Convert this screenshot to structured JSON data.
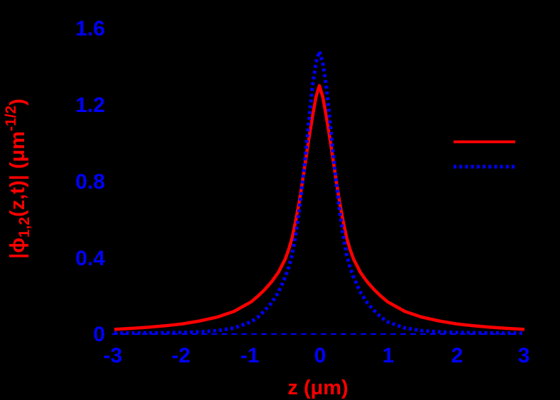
{
  "chart_data": {
    "type": "line",
    "title": "",
    "xlabel": "z (μm)",
    "ylabel": "|ϕ₁‚₂(z,t)| (μm⁻¹ᐟ²)",
    "ylabel_parts": {
      "pre": "|ϕ",
      "sub": "1,2",
      "mid": "(z,t)| (μm",
      "sup": "-1/2",
      "post": ")"
    },
    "xlim": [
      -3,
      3
    ],
    "ylim": [
      0,
      1.6
    ],
    "grid": false,
    "background_color": "#000000",
    "axis_label_color": "#ff0000",
    "tick_label_color": "#0000ff",
    "x_ticks": {
      "values": [
        -3,
        -2,
        -1,
        0,
        1,
        2,
        3
      ],
      "labels": [
        "-3",
        "-2",
        "-1",
        "0",
        "1",
        "2",
        "3"
      ]
    },
    "y_ticks": {
      "values": [
        0,
        0.4,
        0.8,
        1.2,
        1.6
      ],
      "labels": [
        "0",
        "0.4",
        "0.8",
        "1.2",
        "1.6"
      ]
    },
    "zero_line": {
      "color": "#0000ff",
      "style": "dashed",
      "value": 0
    },
    "legend": {
      "position": "upper-right",
      "entries": [
        {
          "series": "red-solid",
          "label": ""
        },
        {
          "series": "blue-dotted",
          "label": ""
        }
      ]
    },
    "series": [
      {
        "id": "red-solid",
        "color": "#ff0000",
        "line_style": "solid",
        "peak": 1.3,
        "x": [
          -3,
          -2.75,
          -2.5,
          -2.25,
          -2,
          -1.75,
          -1.5,
          -1.25,
          -1,
          -0.9,
          -0.8,
          -0.7,
          -0.6,
          -0.5,
          -0.45,
          -0.4,
          -0.35,
          -0.3,
          -0.25,
          -0.2,
          -0.15,
          -0.1,
          -0.05,
          0,
          0.05,
          0.1,
          0.15,
          0.2,
          0.25,
          0.3,
          0.35,
          0.4,
          0.45,
          0.5,
          0.6,
          0.7,
          0.8,
          0.9,
          1,
          1.25,
          1.5,
          1.75,
          2,
          2.25,
          2.5,
          2.75,
          3
        ],
        "y": [
          0.021,
          0.026,
          0.032,
          0.04,
          0.05,
          0.065,
          0.085,
          0.115,
          0.165,
          0.195,
          0.23,
          0.27,
          0.32,
          0.39,
          0.44,
          0.5,
          0.585,
          0.68,
          0.79,
          0.91,
          1.03,
          1.14,
          1.24,
          1.3,
          1.24,
          1.14,
          1.03,
          0.91,
          0.79,
          0.68,
          0.585,
          0.5,
          0.44,
          0.39,
          0.32,
          0.27,
          0.23,
          0.195,
          0.165,
          0.115,
          0.085,
          0.065,
          0.05,
          0.04,
          0.032,
          0.026,
          0.021
        ]
      },
      {
        "id": "blue-dotted",
        "color": "#0000ff",
        "line_style": "dotted",
        "peak": 1.48,
        "x": [
          -3,
          -2.75,
          -2.5,
          -2.25,
          -2,
          -1.75,
          -1.5,
          -1.25,
          -1,
          -0.9,
          -0.8,
          -0.7,
          -0.6,
          -0.5,
          -0.45,
          -0.4,
          -0.35,
          -0.3,
          -0.25,
          -0.2,
          -0.15,
          -0.1,
          -0.05,
          0,
          0.05,
          0.1,
          0.15,
          0.2,
          0.25,
          0.3,
          0.35,
          0.4,
          0.45,
          0.5,
          0.6,
          0.7,
          0.8,
          0.9,
          1,
          1.25,
          1.5,
          1.75,
          2,
          2.25,
          2.5,
          2.75,
          3
        ],
        "y": [
          0.001,
          0.0015,
          0.002,
          0.003,
          0.005,
          0.008,
          0.014,
          0.028,
          0.06,
          0.085,
          0.12,
          0.16,
          0.215,
          0.295,
          0.345,
          0.41,
          0.51,
          0.63,
          0.78,
          0.95,
          1.13,
          1.3,
          1.42,
          1.48,
          1.42,
          1.3,
          1.13,
          0.95,
          0.78,
          0.63,
          0.51,
          0.41,
          0.345,
          0.295,
          0.215,
          0.16,
          0.12,
          0.085,
          0.06,
          0.028,
          0.014,
          0.008,
          0.005,
          0.003,
          0.002,
          0.0015,
          0.001
        ]
      }
    ]
  }
}
